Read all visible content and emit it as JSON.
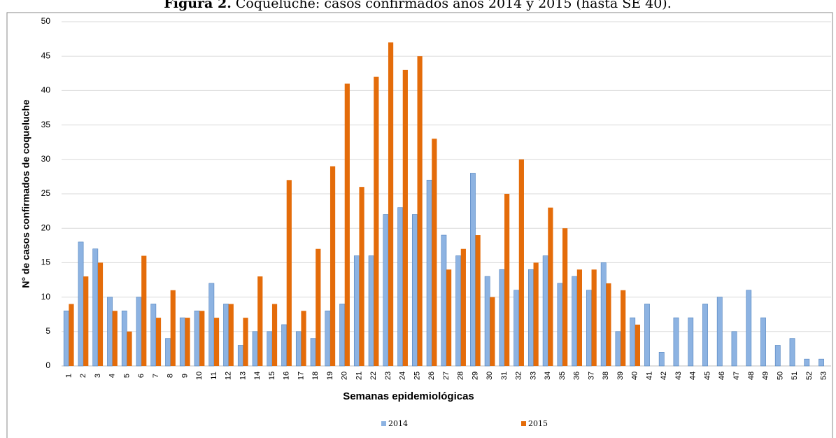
{
  "chart_data": {
    "type": "bar",
    "title_label": "Figura 2.",
    "title": "Coqueluche: casos confirmados años 2014 y 2015 (hasta SE 40).",
    "xlabel": "Semanas epidemiológicas",
    "ylabel": "N° de casos confirmados de coqueluche",
    "categories": [
      "1",
      "2",
      "3",
      "4",
      "5",
      "6",
      "7",
      "8",
      "9",
      "10",
      "11",
      "12",
      "13",
      "14",
      "15",
      "16",
      "17",
      "18",
      "19",
      "20",
      "21",
      "22",
      "23",
      "24",
      "25",
      "26",
      "27",
      "28",
      "29",
      "30",
      "31",
      "32",
      "33",
      "34",
      "35",
      "36",
      "37",
      "38",
      "39",
      "40",
      "41",
      "42",
      "43",
      "44",
      "45",
      "46",
      "47",
      "48",
      "49",
      "50",
      "51",
      "52",
      "53"
    ],
    "series": [
      {
        "name": "2014",
        "color": "#8db3e2",
        "values": [
          8,
          18,
          17,
          10,
          8,
          10,
          9,
          4,
          7,
          8,
          12,
          9,
          3,
          5,
          5,
          6,
          5,
          4,
          8,
          9,
          16,
          16,
          22,
          23,
          22,
          27,
          19,
          16,
          28,
          13,
          14,
          11,
          14,
          16,
          12,
          13,
          11,
          15,
          5,
          7,
          9,
          2,
          7,
          7,
          9,
          10,
          5,
          11,
          7,
          3,
          4,
          1,
          1
        ]
      },
      {
        "name": "2015",
        "color": "#e46c0a",
        "values": [
          9,
          13,
          15,
          8,
          5,
          16,
          7,
          11,
          7,
          8,
          7,
          9,
          7,
          13,
          9,
          27,
          8,
          17,
          29,
          41,
          26,
          42,
          47,
          43,
          45,
          33,
          14,
          17,
          19,
          10,
          25,
          30,
          15,
          23,
          20,
          14,
          14,
          12,
          11,
          6,
          null,
          null,
          null,
          null,
          null,
          null,
          null,
          null,
          null,
          null,
          null,
          null,
          null
        ]
      }
    ],
    "ylim": [
      0,
      50
    ],
    "yticks": [
      0,
      5,
      10,
      15,
      20,
      25,
      30,
      35,
      40,
      45,
      50
    ],
    "grid": true,
    "legend": "bottom"
  }
}
